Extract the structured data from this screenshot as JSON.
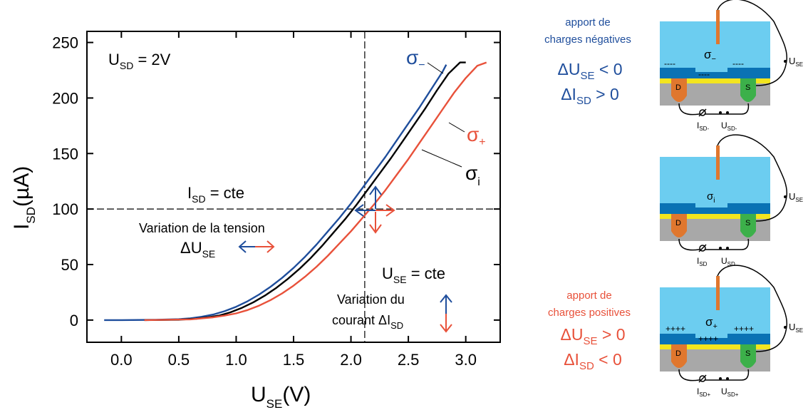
{
  "colors": {
    "sigma_minus": "#1f4e9c",
    "sigma_i": "#000000",
    "sigma_plus": "#e8513a",
    "electrolyte": "#6ccdf0",
    "dielectric": "#0a72b4",
    "channel": "#f3e51f",
    "substrate": "#a8a8a8",
    "drain": "#e0772e",
    "source": "#3cb04a",
    "gate": "#e0772e"
  },
  "chart_data": {
    "type": "line",
    "xlabel_main": "U",
    "xlabel_sub": "SE",
    "xlabel_tail": "(V)",
    "ylabel_main": "I",
    "ylabel_sub": "SD",
    "ylabel_tail": "(µA)",
    "xlim": [
      -0.3,
      3.3
    ],
    "ylim": [
      -20,
      260
    ],
    "xticks": [
      0.0,
      0.5,
      1.0,
      1.5,
      2.0,
      2.5,
      3.0
    ],
    "xtick_labels": [
      "0.0",
      "0.5",
      "1.0",
      "1.5",
      "2.0",
      "2.5",
      "3.0"
    ],
    "yticks": [
      0,
      50,
      100,
      150,
      200,
      250
    ],
    "ytick_labels": [
      "0",
      "50",
      "100",
      "150",
      "200",
      "250"
    ],
    "grid": false,
    "series": [
      {
        "name": "σ−",
        "color": "#1f4e9c",
        "x": [
          -0.15,
          0.0,
          0.3,
          0.5,
          0.6,
          0.7,
          0.8,
          0.9,
          1.0,
          1.1,
          1.2,
          1.3,
          1.4,
          1.5,
          1.6,
          1.7,
          1.8,
          1.9,
          2.0,
          2.1,
          2.2,
          2.3,
          2.4,
          2.5,
          2.6,
          2.7,
          2.8,
          2.83
        ],
        "y": [
          0,
          0,
          0.2,
          0.8,
          1.6,
          3,
          5,
          8,
          12,
          17,
          23,
          30,
          38,
          47,
          57,
          68,
          80,
          92,
          105,
          119,
          133,
          147,
          162,
          177,
          192,
          208,
          224,
          230
        ]
      },
      {
        "name": "σi",
        "color": "#000000",
        "x": [
          0.2,
          0.5,
          0.65,
          0.75,
          0.85,
          0.95,
          1.05,
          1.15,
          1.25,
          1.35,
          1.45,
          1.55,
          1.65,
          1.75,
          1.85,
          1.95,
          2.05,
          2.15,
          2.25,
          2.35,
          2.45,
          2.55,
          2.65,
          2.75,
          2.85,
          2.95,
          3.0
        ],
        "y": [
          0,
          0.3,
          1.2,
          2.5,
          4,
          7,
          11,
          16,
          22,
          29,
          37,
          46,
          56,
          67,
          79,
          91,
          104,
          118,
          132,
          146,
          161,
          176,
          191,
          207,
          222,
          232,
          232
        ]
      },
      {
        "name": "σ+",
        "color": "#e8513a",
        "x": [
          0.2,
          0.6,
          0.8,
          0.9,
          1.0,
          1.1,
          1.2,
          1.3,
          1.4,
          1.5,
          1.6,
          1.7,
          1.8,
          1.9,
          2.0,
          2.1,
          2.2,
          2.3,
          2.4,
          2.5,
          2.6,
          2.7,
          2.8,
          2.9,
          3.0,
          3.1,
          3.18
        ],
        "y": [
          0,
          0.6,
          2.5,
          4,
          6,
          9,
          13,
          18,
          24,
          31,
          39,
          48,
          58,
          69,
          80,
          92,
          104,
          117,
          131,
          145,
          160,
          175,
          190,
          205,
          218,
          229,
          232
        ]
      }
    ],
    "reference_lines": {
      "x": 2.12,
      "y": 100
    }
  },
  "annotations": {
    "usd_main": "U",
    "usd_sub": "SD",
    "usd_tail": " = 2V",
    "isd_cte_main": "I",
    "isd_cte_sub": "SD",
    "isd_cte_tail": " = cte",
    "var_tension": "Variation de la tension",
    "delta_use_main": "ΔU",
    "delta_use_sub": "SE",
    "use_cte_main": "U",
    "use_cte_sub": "SE",
    "use_cte_tail": " = cte",
    "var_courant_1": "Variation du",
    "var_courant_2_main": "courant ΔI",
    "var_courant_2_sub": "SD",
    "sigma_minus_main": "σ",
    "sigma_minus_sub": "−",
    "sigma_plus_main": "σ",
    "sigma_plus_sub": "+",
    "sigma_i_main": "σ",
    "sigma_i_sub": "i"
  },
  "right_panel": {
    "neg_title_1": "apport de",
    "neg_title_2": "charges négatives",
    "neg_eq1_main": "ΔU",
    "neg_eq1_sub": "SE",
    "neg_eq1_tail": " < 0",
    "neg_eq2_main": "ΔI",
    "neg_eq2_sub": "SD",
    "neg_eq2_tail": " > 0",
    "pos_title_1": "apport de",
    "pos_title_2": "charges positives",
    "pos_eq1_main": "ΔU",
    "pos_eq1_sub": "SE",
    "pos_eq1_tail": " > 0",
    "pos_eq2_main": "ΔI",
    "pos_eq2_sub": "SD",
    "pos_eq2_tail": " < 0"
  },
  "devices": {
    "top": {
      "sigma_main": "σ",
      "sigma_sub": "−",
      "charges_left": "----",
      "charges_mid": "----",
      "charges_right": "----",
      "drain_label": "D",
      "source_label": "S",
      "use_main": "U",
      "use_sub": "SE",
      "isd_main": "I",
      "isd_sub": "SD-",
      "usd_main": "U",
      "usd_sub": "SD-"
    },
    "mid": {
      "sigma_main": "σ",
      "sigma_sub": "i",
      "drain_label": "D",
      "source_label": "S",
      "use_main": "U",
      "use_sub": "SE",
      "isd_main": "I",
      "isd_sub": "SD",
      "usd_main": "U",
      "usd_sub": "SD"
    },
    "bot": {
      "sigma_main": "σ",
      "sigma_sub": "+",
      "charges_left": "++++",
      "charges_mid": "++++",
      "charges_right": "++++",
      "drain_label": "D",
      "source_label": "S",
      "use_main": "U",
      "use_sub": "SE",
      "isd_main": "I",
      "isd_sub": "SD+",
      "usd_main": "U",
      "usd_sub": "SD+"
    }
  }
}
